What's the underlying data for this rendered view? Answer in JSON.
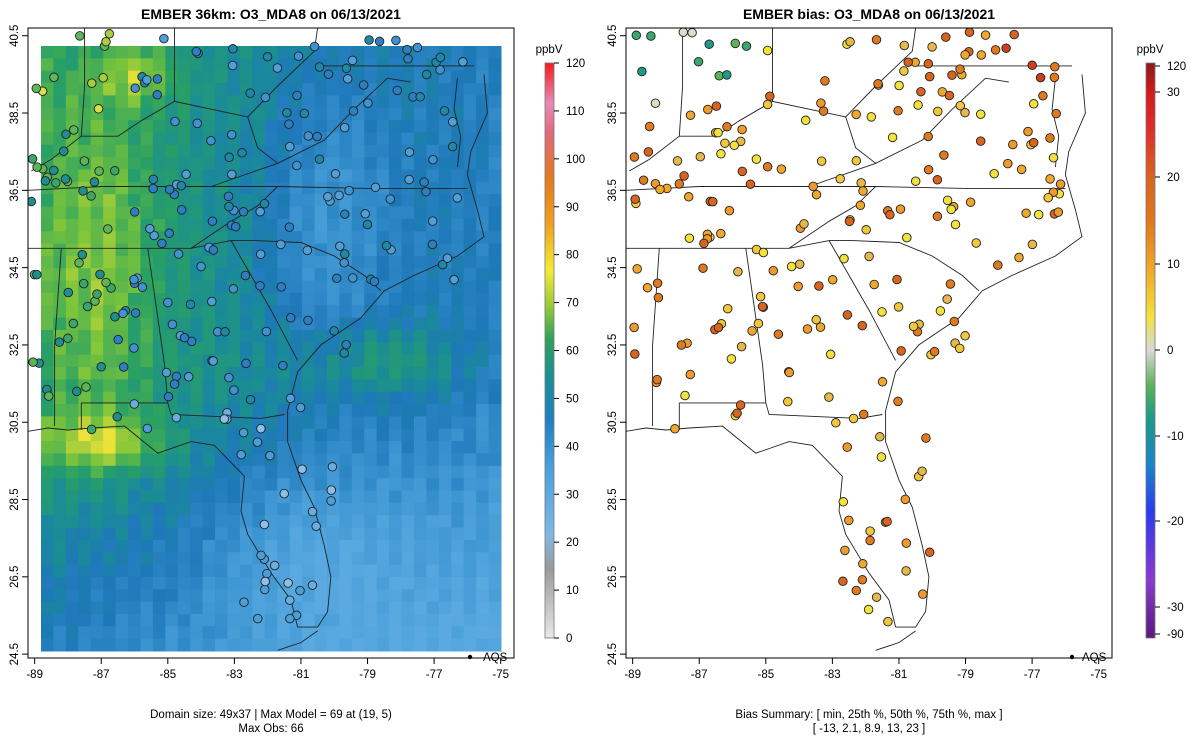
{
  "left_panel": {
    "title": "EMBER 36km: O3_MDA8 on 06/13/2021",
    "caption_line1": "Domain size: 49x37 | Max Model = 69 at (19, 5)",
    "caption_line2": "Max Obs: 66",
    "legend_label": "AQS",
    "colorbar_unit": "ppbV",
    "colorbar_ticks": [
      "0",
      "10",
      "20",
      "30",
      "40",
      "50",
      "60",
      "70",
      "80",
      "90",
      "100",
      "110",
      "120"
    ]
  },
  "right_panel": {
    "title": "EMBER bias: O3_MDA8 on 06/13/2021",
    "caption_line1": "Bias Summary: [ min, 25th %, 50th %, 75th %, max ]",
    "caption_line2": "[ -13,   2.1,   8.9,   13,   23 ]",
    "legend_label": "AQS",
    "colorbar_unit": "ppbV",
    "colorbar_ticks": [
      "-90",
      "-30",
      "-20",
      "-10",
      "0",
      "10",
      "20",
      "30",
      "120"
    ]
  },
  "axes": {
    "x_ticks": [
      "-89",
      "-87",
      "-85",
      "-83",
      "-81",
      "-79",
      "-77",
      "-75"
    ],
    "y_ticks": [
      "24.5",
      "26.5",
      "28.5",
      "30.5",
      "32.5",
      "34.5",
      "36.5",
      "38.5",
      "40.5"
    ]
  },
  "chart_data": [
    {
      "type": "heatmap",
      "title": "EMBER 36km: O3_MDA8 on 06/13/2021",
      "lon_range": [
        -89.2,
        -74.6
      ],
      "lat_range": [
        24.4,
        40.7
      ],
      "color_scale_range": [
        0,
        120
      ],
      "color_scale_unit": "ppbV",
      "max_model": 69,
      "max_model_cell": [
        19,
        5
      ],
      "max_obs": 66,
      "domain_size": "49x37",
      "legend": "AQS",
      "colors": {
        "background": "#ffffff",
        "low": "#4fa8df",
        "mid": "#1f8ebf",
        "high": "#f4e23a"
      }
    },
    {
      "type": "scatter",
      "title": "EMBER bias: O3_MDA8 on 06/13/2021",
      "lon_range": [
        -89.2,
        -74.6
      ],
      "lat_range": [
        24.4,
        40.7
      ],
      "bias_summary": {
        "min": -13,
        "p25": 2.1,
        "median": 8.9,
        "p75": 13,
        "max": 23
      },
      "legend": "AQS"
    }
  ]
}
